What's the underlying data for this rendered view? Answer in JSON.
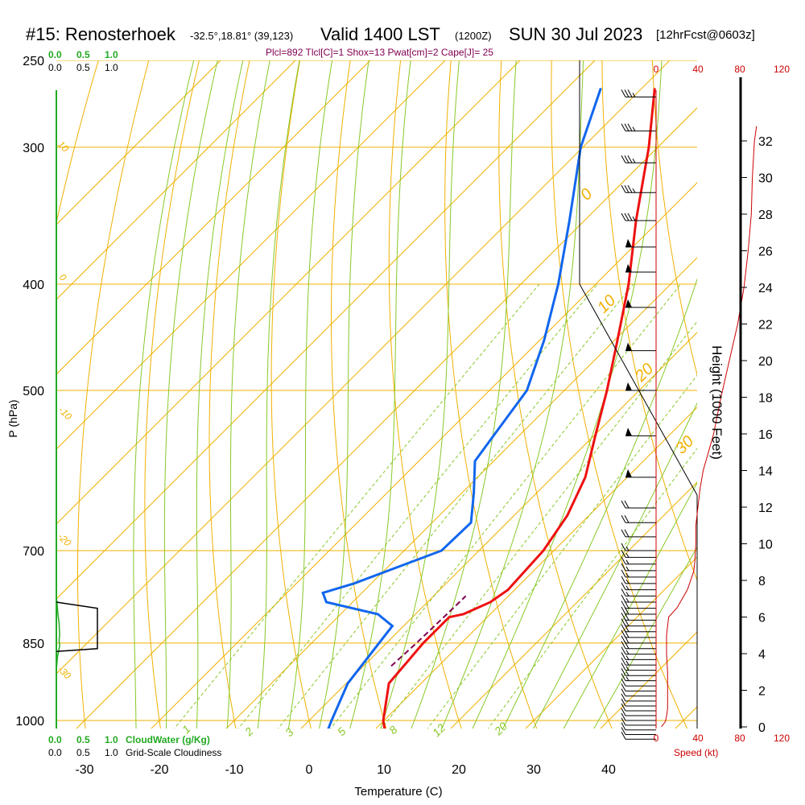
{
  "header": {
    "station": "#15: Renosterhoek",
    "coords": "-32.5°,18.81° (39,123)",
    "valid": "Valid 1400 LST",
    "utc": "(1200Z)",
    "date": "SUN 30 Jul 2023",
    "forecast": "[12hrFcst@0603z]"
  },
  "indices": "Plcl=892 Tlcl[C]=1 Shox=13 Pwat[cm]=2 Cape[J]= 25",
  "colors": {
    "isotherm": "#f0b000",
    "dry_adiabat": "#f0b000",
    "moist_adiabat": "#88c828",
    "mixing_ratio": "#88c828",
    "temperature": "#ee1111",
    "dewpoint": "#1166ee",
    "parcel": "#800050",
    "cloudwater": "#22aa22",
    "cloudiness": "#000000",
    "wind_speed": "#cc0000",
    "height": "#000000"
  },
  "chart_data": {
    "type": "line",
    "xlabel": "Temperature (C)",
    "ylabel": "P (hPa)",
    "x_ticks": [
      -30,
      -20,
      -10,
      0,
      10,
      20,
      30,
      40
    ],
    "y_ticks": [
      250,
      300,
      400,
      500,
      700,
      850,
      1000
    ],
    "xlim": [
      -35,
      45
    ],
    "ylim": [
      1050,
      250
    ],
    "y_scale": "log",
    "skew": "temperature axis skewed 45 degrees",
    "isotherm_labels": [
      "0",
      "10",
      "20",
      "30"
    ],
    "dry_adiabat_labels": [
      "10",
      "0",
      "-10",
      "-20",
      "-30",
      "-40"
    ],
    "mixing_ratio_labels": [
      "1",
      "2",
      "3",
      "5",
      "8",
      "12",
      "20"
    ],
    "series": [
      {
        "name": "temperature",
        "points": [
          [
            1050,
            13.5
          ],
          [
            1000,
            9.9
          ],
          [
            925,
            5.7
          ],
          [
            850,
            4.9
          ],
          [
            805,
            4.9
          ],
          [
            800,
            6.4
          ],
          [
            780,
            8.4
          ],
          [
            760,
            9.1
          ],
          [
            700,
            8.6
          ],
          [
            650,
            7.1
          ],
          [
            600,
            4.4
          ],
          [
            550,
            0.2
          ],
          [
            500,
            -4.3
          ],
          [
            450,
            -9.6
          ],
          [
            400,
            -15.6
          ],
          [
            350,
            -23.1
          ],
          [
            300,
            -31.2
          ],
          [
            265,
            -38.3
          ]
        ]
      },
      {
        "name": "dewpoint",
        "points": [
          [
            1050,
            5.8
          ],
          [
            1040,
            4.5
          ],
          [
            1000,
            3.0
          ],
          [
            925,
            0.2
          ],
          [
            850,
            -1.0
          ],
          [
            820,
            -1.5
          ],
          [
            800,
            -5.0
          ],
          [
            780,
            -13.5
          ],
          [
            765,
            -15.2
          ],
          [
            750,
            -12.3
          ],
          [
            700,
            -5.0
          ],
          [
            660,
            -4.8
          ],
          [
            620,
            -8.4
          ],
          [
            580,
            -12.5
          ],
          [
            550,
            -13.4
          ],
          [
            500,
            -15.0
          ],
          [
            450,
            -19.4
          ],
          [
            400,
            -25.0
          ],
          [
            350,
            -32.0
          ],
          [
            300,
            -40.3
          ],
          [
            265,
            -45.5
          ]
        ]
      },
      {
        "name": "parcel",
        "points": [
          [
            892,
            3.7
          ],
          [
            850,
            4.0
          ],
          [
            800,
            4.2
          ],
          [
            770,
            4.3
          ]
        ]
      }
    ],
    "wind_barbs": {
      "pressures": [
        1040,
        1030,
        1020,
        1010,
        1000,
        990,
        980,
        970,
        960,
        950,
        940,
        930,
        920,
        910,
        900,
        890,
        880,
        870,
        860,
        850,
        840,
        830,
        820,
        810,
        800,
        790,
        780,
        770,
        760,
        750,
        740,
        730,
        720,
        710,
        700,
        680,
        660,
        640,
        600,
        550,
        500,
        460,
        420,
        390,
        370,
        350,
        330,
        310,
        290,
        270
      ],
      "speeds_kt": [
        10,
        10,
        10,
        10,
        10,
        10,
        10,
        10,
        10,
        10,
        10,
        10,
        15,
        15,
        15,
        15,
        15,
        15,
        20,
        20,
        20,
        20,
        20,
        20,
        20,
        20,
        15,
        15,
        15,
        15,
        15,
        15,
        15,
        15,
        15,
        20,
        20,
        20,
        50,
        50,
        50,
        50,
        50,
        50,
        50,
        35,
        35,
        35,
        35,
        35
      ],
      "direction": "westerly"
    },
    "height_axis": {
      "label": "Height (1000 Feet)",
      "ticks": [
        0,
        2,
        4,
        6,
        8,
        10,
        12,
        14,
        16,
        18,
        20,
        22,
        24,
        26,
        28,
        30,
        32
      ]
    },
    "wind_speed_axis": {
      "label": "Speed (kt)",
      "ticks": [
        "0",
        "40",
        "80",
        "120"
      ],
      "profile": [
        [
          0,
          5
        ],
        [
          0.3,
          9
        ],
        [
          0.6,
          10
        ],
        [
          1,
          11
        ],
        [
          2,
          11
        ],
        [
          3,
          11
        ],
        [
          4,
          10
        ],
        [
          5,
          10
        ],
        [
          6,
          12
        ],
        [
          6.5,
          20
        ],
        [
          7.5,
          30
        ],
        [
          8.5,
          36
        ],
        [
          9,
          37
        ],
        [
          10,
          38
        ],
        [
          11,
          38
        ],
        [
          12,
          40
        ],
        [
          13,
          42
        ],
        [
          14,
          45
        ],
        [
          15,
          50
        ],
        [
          16,
          55
        ],
        [
          18,
          62
        ],
        [
          20,
          70
        ],
        [
          22,
          78
        ],
        [
          24,
          84
        ],
        [
          26,
          88
        ],
        [
          28,
          91
        ],
        [
          30,
          92
        ],
        [
          32,
          94
        ],
        [
          32.8,
          96
        ]
      ]
    },
    "cloudwater_axis": {
      "label": "CloudWater (g/Kg)",
      "ticks": [
        "0.0",
        "0.5",
        "1.0"
      ]
    },
    "cloudiness_axis": {
      "label": "Grid-Scale Cloudiness",
      "ticks": [
        "0.0",
        "0.5",
        "1.0"
      ]
    },
    "cloudiness_profile": [
      [
        865,
        0
      ],
      [
        860,
        0.75
      ],
      [
        790,
        0.75
      ],
      [
        780,
        0
      ]
    ],
    "cloudwater_profile": [
      [
        1050,
        0
      ],
      [
        900,
        0
      ],
      [
        875,
        0.02
      ],
      [
        855,
        0.06
      ],
      [
        845,
        0.05
      ],
      [
        835,
        0.06
      ],
      [
        815,
        0.05
      ],
      [
        800,
        0.03
      ],
      [
        780,
        0.01
      ],
      [
        770,
        0
      ]
    ]
  }
}
